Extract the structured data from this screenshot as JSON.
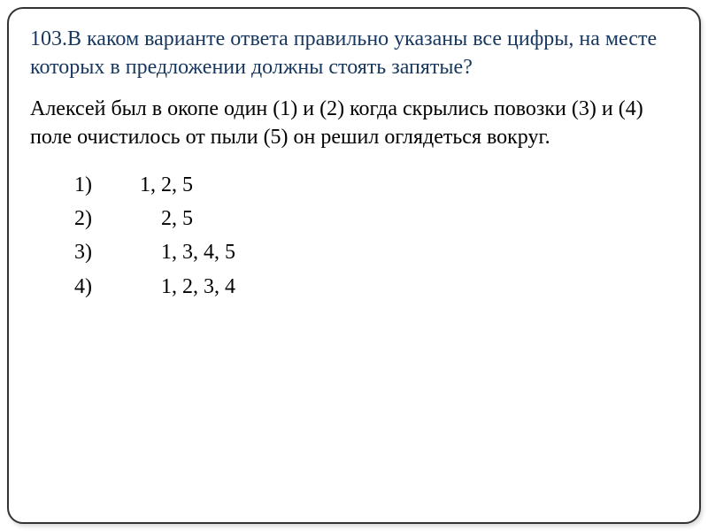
{
  "question": {
    "number": "103.",
    "intro": "В каком варианте ответа правильно указаны все цифры, на месте которых в предложении должны стоять запятые?"
  },
  "sentence": "Алексей был в окопе один (1) и (2) когда скрылись повозки (3) и (4) поле очистилось от пыли (5) он решил оглядеться вокруг.",
  "options": [
    {
      "label": "1)",
      "value": "1, 2, 5",
      "pad": " "
    },
    {
      "label": "2)",
      "value": "2, 5",
      "pad": "     "
    },
    {
      "label": "3)",
      "value": "1, 3, 4, 5",
      "pad": "     "
    },
    {
      "label": "4)",
      "value": "1, 2, 3, 4",
      "pad": "     "
    }
  ],
  "colors": {
    "intro": "#17375e",
    "text": "#000000",
    "border": "#333333",
    "background": "#ffffff"
  },
  "typography": {
    "intro_fontsize": 24,
    "body_fontsize": 24,
    "line_height": 1.35
  }
}
